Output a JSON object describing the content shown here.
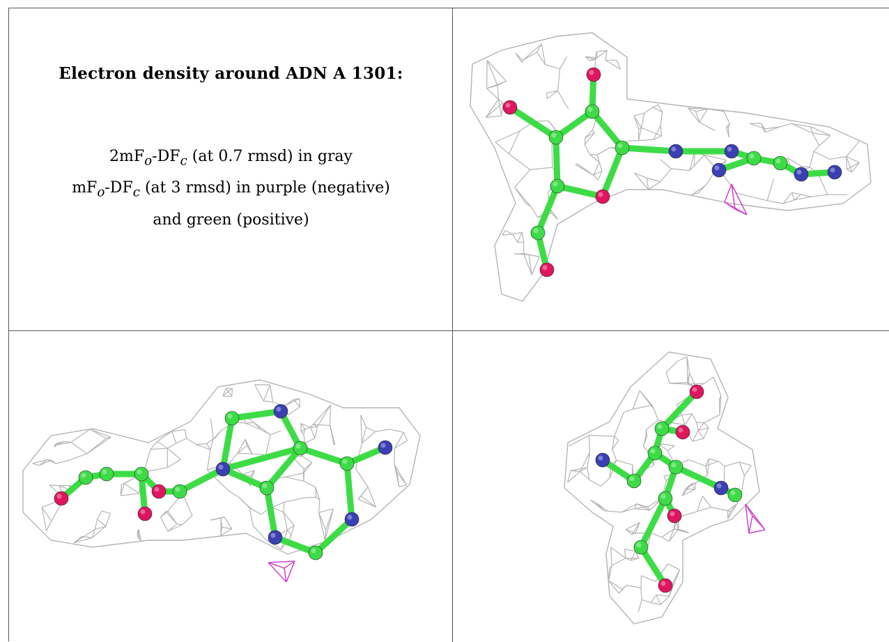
{
  "legend": {
    "title": "Electron density around ADN A 1301:",
    "line1": {
      "prefix": "2mF",
      "sub1": "o",
      "mid": "-DF",
      "sub2": "c",
      "suffix": " (at 0.7 rmsd) in gray"
    },
    "line2": {
      "prefix": "mF",
      "sub1": "o",
      "mid": "-DF",
      "sub2": "c",
      "suffix": " (at 3 rmsd) in purple (negative)"
    },
    "line3": "and green (positive)"
  },
  "colors": {
    "mesh": "#b4b4b4",
    "carbon": "#3ddc46",
    "nitrogen": "#3b3fb4",
    "oxygen": "#e0155f",
    "difference_negative": "#d04ad0",
    "border": "#555555"
  },
  "views": [
    "density-view-top-right",
    "density-view-bottom-left",
    "density-view-bottom-right"
  ]
}
